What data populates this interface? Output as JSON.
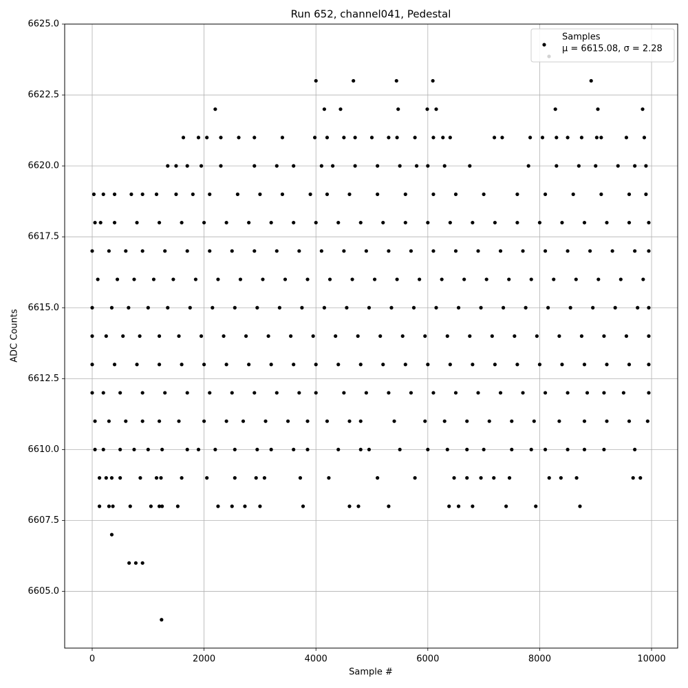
{
  "chart_data": {
    "type": "scatter",
    "title": "Run 652, channel041, Pedestal",
    "x_label": "Sample #",
    "y_label": "ADC Counts",
    "xlim": [
      -492,
      10467
    ],
    "ylim": [
      6603,
      6625
    ],
    "xticks": [
      0,
      2000,
      4000,
      6000,
      8000,
      10000
    ],
    "yticks": [
      {
        "value": 6605,
        "label": "6605.0"
      },
      {
        "value": 6607.5,
        "label": "6607.5"
      },
      {
        "value": 6610,
        "label": "6610.0"
      },
      {
        "value": 6612.5,
        "label": "6612.5"
      },
      {
        "value": 6615,
        "label": "6615.0"
      },
      {
        "value": 6617.5,
        "label": "6617.5"
      },
      {
        "value": 6620,
        "label": "6620.0"
      },
      {
        "value": 6622.5,
        "label": "6622.5"
      },
      {
        "value": 6625,
        "label": "6625.0"
      }
    ],
    "grid": true,
    "legend": "upper right",
    "series": [
      {
        "name": "Samples",
        "color": "#000000",
        "x": [
          1240,
          660,
          780,
          900,
          350,
          130,
          300,
          370,
          680,
          1050,
          1200,
          1250,
          1530,
          2250,
          2500,
          2730,
          3000,
          3770,
          4600,
          4760,
          5300,
          6380,
          6550,
          6800,
          7400,
          7930,
          8720,
          130,
          250,
          350,
          500,
          860,
          1150,
          1230,
          1600,
          2050,
          2550,
          2930,
          3080,
          3720,
          4230,
          5100,
          5770,
          6470,
          6700,
          6950,
          7180,
          7460,
          8170,
          8380,
          8660,
          9670,
          9800,
          50,
          200,
          500,
          750,
          1000,
          1250,
          1700,
          1900,
          2200,
          2550,
          2950,
          3200,
          3600,
          3850,
          4400,
          4800,
          4950,
          5500,
          6000,
          6350,
          6700,
          7000,
          7500,
          7850,
          8100,
          8500,
          8800,
          9150,
          9700,
          50,
          300,
          600,
          900,
          1200,
          1550,
          2000,
          2400,
          2700,
          3100,
          3500,
          3850,
          4200,
          4600,
          4800,
          5400,
          5950,
          6300,
          6700,
          7100,
          7500,
          7900,
          8350,
          8800,
          9200,
          9600,
          9930,
          0,
          200,
          500,
          900,
          1300,
          1700,
          2100,
          2500,
          2900,
          3300,
          3700,
          4000,
          4500,
          4900,
          5300,
          5700,
          6100,
          6500,
          6900,
          7300,
          7700,
          8100,
          8500,
          8850,
          9150,
          9500,
          9950,
          0,
          400,
          800,
          1200,
          1600,
          2000,
          2400,
          2800,
          3200,
          3600,
          4000,
          4400,
          4800,
          5200,
          5600,
          6000,
          6400,
          6800,
          7200,
          7600,
          8000,
          8400,
          8800,
          9200,
          9600,
          9950,
          0,
          250,
          550,
          850,
          1200,
          1550,
          1950,
          2350,
          2750,
          3150,
          3550,
          3950,
          4350,
          4750,
          5150,
          5550,
          5950,
          6350,
          6750,
          7150,
          7550,
          7950,
          8350,
          8750,
          9150,
          9550,
          9950,
          0,
          350,
          650,
          1000,
          1350,
          1750,
          2150,
          2550,
          2950,
          3350,
          3750,
          4150,
          4550,
          4950,
          5350,
          5750,
          6150,
          6550,
          6950,
          7350,
          7750,
          8150,
          8550,
          8950,
          9350,
          9750,
          9950,
          100,
          450,
          750,
          1100,
          1450,
          1850,
          2250,
          2650,
          3050,
          3450,
          3850,
          4250,
          4650,
          5050,
          5450,
          5850,
          6250,
          6650,
          7050,
          7450,
          7850,
          8250,
          8650,
          9050,
          9450,
          9850,
          0,
          300,
          600,
          900,
          1300,
          1700,
          2100,
          2500,
          2900,
          3300,
          3700,
          4100,
          4500,
          4900,
          5300,
          5700,
          6100,
          6500,
          6900,
          7300,
          7700,
          8100,
          8500,
          8900,
          9300,
          9700,
          9950,
          50,
          150,
          400,
          800,
          1200,
          1600,
          2000,
          2400,
          2800,
          3200,
          3600,
          4000,
          4400,
          4800,
          5200,
          5600,
          6000,
          6400,
          6800,
          7200,
          7600,
          8000,
          8400,
          8800,
          9200,
          9600,
          9950,
          30,
          200,
          400,
          700,
          900,
          1150,
          1500,
          1800,
          2100,
          2600,
          3000,
          3400,
          3900,
          4200,
          4600,
          5100,
          5600,
          6100,
          6500,
          7000,
          7600,
          8100,
          8600,
          9100,
          9600,
          9900,
          1350,
          1500,
          1700,
          1950,
          2300,
          2900,
          3300,
          3600,
          4100,
          4300,
          4700,
          5100,
          5500,
          5800,
          6000,
          6300,
          6750,
          7800,
          8300,
          8700,
          9000,
          9400,
          9700,
          9900,
          1630,
          1900,
          2050,
          2300,
          2620,
          2900,
          3400,
          3980,
          4200,
          4500,
          4700,
          5000,
          5300,
          5450,
          5770,
          6100,
          6270,
          6400,
          7190,
          7330,
          7830,
          8050,
          8300,
          8500,
          8750,
          9020,
          9100,
          9550,
          9870,
          2200,
          4150,
          4440,
          5470,
          5990,
          6150,
          8280,
          9040,
          9840,
          4000,
          4670,
          5440,
          6090,
          8920
        ],
        "values": [
          6604,
          6606,
          6606,
          6606,
          6607,
          6608,
          6608,
          6608,
          6608,
          6608,
          6608,
          6608,
          6608,
          6608,
          6608,
          6608,
          6608,
          6608,
          6608,
          6608,
          6608,
          6608,
          6608,
          6608,
          6608,
          6608,
          6608,
          6609,
          6609,
          6609,
          6609,
          6609,
          6609,
          6609,
          6609,
          6609,
          6609,
          6609,
          6609,
          6609,
          6609,
          6609,
          6609,
          6609,
          6609,
          6609,
          6609,
          6609,
          6609,
          6609,
          6609,
          6609,
          6609,
          6610,
          6610,
          6610,
          6610,
          6610,
          6610,
          6610,
          6610,
          6610,
          6610,
          6610,
          6610,
          6610,
          6610,
          6610,
          6610,
          6610,
          6610,
          6610,
          6610,
          6610,
          6610,
          6610,
          6610,
          6610,
          6610,
          6610,
          6610,
          6610,
          6611,
          6611,
          6611,
          6611,
          6611,
          6611,
          6611,
          6611,
          6611,
          6611,
          6611,
          6611,
          6611,
          6611,
          6611,
          6611,
          6611,
          6611,
          6611,
          6611,
          6611,
          6611,
          6611,
          6611,
          6611,
          6611,
          6611,
          6612,
          6612,
          6612,
          6612,
          6612,
          6612,
          6612,
          6612,
          6612,
          6612,
          6612,
          6612,
          6612,
          6612,
          6612,
          6612,
          6612,
          6612,
          6612,
          6612,
          6612,
          6612,
          6612,
          6612,
          6612,
          6612,
          6612,
          6613,
          6613,
          6613,
          6613,
          6613,
          6613,
          6613,
          6613,
          6613,
          6613,
          6613,
          6613,
          6613,
          6613,
          6613,
          6613,
          6613,
          6613,
          6613,
          6613,
          6613,
          6613,
          6613,
          6613,
          6613,
          6613,
          6614,
          6614,
          6614,
          6614,
          6614,
          6614,
          6614,
          6614,
          6614,
          6614,
          6614,
          6614,
          6614,
          6614,
          6614,
          6614,
          6614,
          6614,
          6614,
          6614,
          6614,
          6614,
          6614,
          6614,
          6614,
          6614,
          6614,
          6615,
          6615,
          6615,
          6615,
          6615,
          6615,
          6615,
          6615,
          6615,
          6615,
          6615,
          6615,
          6615,
          6615,
          6615,
          6615,
          6615,
          6615,
          6615,
          6615,
          6615,
          6615,
          6615,
          6615,
          6615,
          6615,
          6615,
          6616,
          6616,
          6616,
          6616,
          6616,
          6616,
          6616,
          6616,
          6616,
          6616,
          6616,
          6616,
          6616,
          6616,
          6616,
          6616,
          6616,
          6616,
          6616,
          6616,
          6616,
          6616,
          6616,
          6616,
          6616,
          6616,
          6617,
          6617,
          6617,
          6617,
          6617,
          6617,
          6617,
          6617,
          6617,
          6617,
          6617,
          6617,
          6617,
          6617,
          6617,
          6617,
          6617,
          6617,
          6617,
          6617,
          6617,
          6617,
          6617,
          6617,
          6617,
          6617,
          6617,
          6618,
          6618,
          6618,
          6618,
          6618,
          6618,
          6618,
          6618,
          6618,
          6618,
          6618,
          6618,
          6618,
          6618,
          6618,
          6618,
          6618,
          6618,
          6618,
          6618,
          6618,
          6618,
          6618,
          6618,
          6618,
          6618,
          6618,
          6619,
          6619,
          6619,
          6619,
          6619,
          6619,
          6619,
          6619,
          6619,
          6619,
          6619,
          6619,
          6619,
          6619,
          6619,
          6619,
          6619,
          6619,
          6619,
          6619,
          6619,
          6619,
          6619,
          6619,
          6619,
          6619,
          6620,
          6620,
          6620,
          6620,
          6620,
          6620,
          6620,
          6620,
          6620,
          6620,
          6620,
          6620,
          6620,
          6620,
          6620,
          6620,
          6620,
          6620,
          6620,
          6620,
          6620,
          6620,
          6620,
          6620,
          6621,
          6621,
          6621,
          6621,
          6621,
          6621,
          6621,
          6621,
          6621,
          6621,
          6621,
          6621,
          6621,
          6621,
          6621,
          6621,
          6621,
          6621,
          6621,
          6621,
          6621,
          6621,
          6621,
          6621,
          6621,
          6621,
          6621,
          6621,
          6621,
          6622,
          6622,
          6622,
          6622,
          6622,
          6622,
          6622,
          6622,
          6622,
          6623,
          6623,
          6623,
          6623,
          6623
        ]
      },
      {
        "name": "μ = 6615.08, σ = 2.28",
        "color": "#d3d3d3",
        "x": [],
        "values": []
      }
    ]
  }
}
